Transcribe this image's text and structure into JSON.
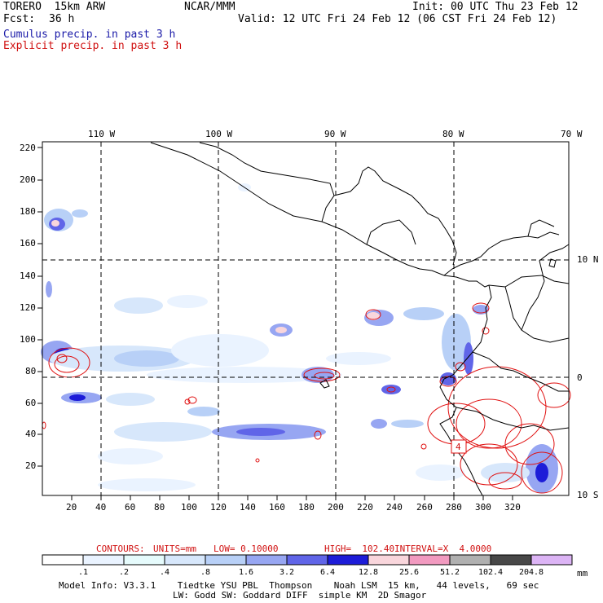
{
  "header": {
    "model_line": "TORERO  15km ARW",
    "fcst_label": "Fcst:",
    "fcst_value": "36 h",
    "org": "NCAR/MMM",
    "init": "Init: 00 UTC Thu 23 Feb 12",
    "valid": "Valid: 12 UTC Fri 24 Feb 12 (06 CST Fri 24 Feb 12)",
    "legend_cumulus": "Cumulus precip. in past 3 h",
    "legend_explicit": "Explicit precip. in past 3 h"
  },
  "map": {
    "lon_labels": [
      "110 W",
      "100 W",
      "90 W",
      "80 W",
      "70 W"
    ],
    "lat_labels": [
      "10 N",
      "0",
      "10 S"
    ],
    "y_ticks": [
      "220",
      "200",
      "180",
      "160",
      "140",
      "120",
      "100",
      "80",
      "60",
      "40",
      "20"
    ],
    "x_ticks": [
      "20",
      "40",
      "60",
      "80",
      "100",
      "120",
      "140",
      "160",
      "180",
      "200",
      "220",
      "240",
      "260",
      "280",
      "300",
      "320"
    ],
    "box_label": "4"
  },
  "contours": {
    "title": "CONTOURS:",
    "units": "UNITS=mm",
    "low": "LOW= 0.10000",
    "high": "HIGH=  102.40",
    "interval": "INTERVAL=X  4.0000"
  },
  "colorbar": {
    "labels": [
      ".1",
      ".2",
      ".4",
      ".8",
      "1.6",
      "3.2",
      "6.4",
      "12.8",
      "25.6",
      "51.2",
      "102.4",
      "204.8"
    ],
    "unit": "mm",
    "colors": [
      "#ffffff",
      "#eaf3ff",
      "#e6fbfc",
      "#d7e7fb",
      "#b8d0f7",
      "#97a6f2",
      "#6065e8",
      "#1d1cd8",
      "#f9d6dc",
      "#f29ac0",
      "#b0b0b0",
      "#484848",
      "#dcb4f5"
    ]
  },
  "footer": {
    "line1": "Model Info: V3.3.1    Tiedtke YSU PBL  Thompson    Noah LSM  15 km,   44 levels,   69 sec",
    "line2": "LW: Godd SW: Goddard DIFF  simple KM  2D Smagor"
  }
}
